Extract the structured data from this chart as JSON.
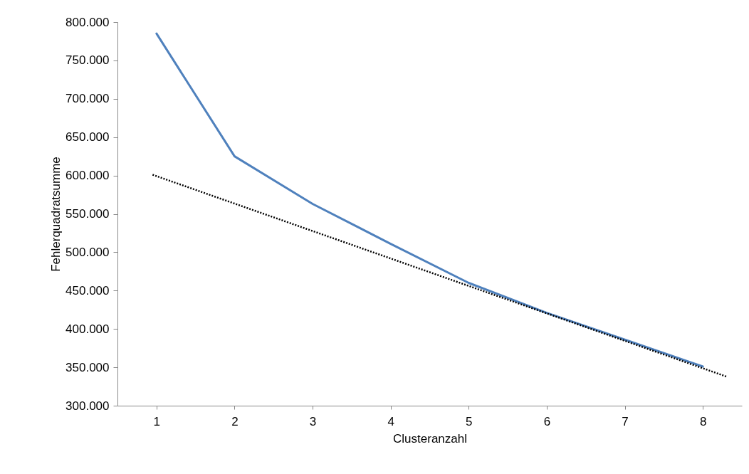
{
  "chart_data": {
    "type": "line",
    "xlabel": "Clusteranzahl",
    "ylabel": "Fehlerquadratsumme",
    "x": [
      1,
      2,
      3,
      4,
      5,
      6,
      7,
      8
    ],
    "series": [
      {
        "color": "#4f81bd",
        "values": [
          785,
          625,
          563,
          511,
          460,
          421,
          386,
          351
        ],
        "line_style": "solid"
      },
      {
        "type": "line",
        "color": "#000000",
        "x": [
          0.95,
          8.3
        ],
        "values": [
          601,
          338
        ],
        "line_style": "dotted"
      }
    ],
    "xlim": [
      0.5,
      8.5
    ],
    "xticks": [
      1,
      2,
      3,
      4,
      5,
      6,
      7,
      8
    ],
    "ylim": [
      300,
      800
    ],
    "yticks": [
      {
        "value": 300,
        "label": "300.000"
      },
      {
        "value": 350,
        "label": "350.000"
      },
      {
        "value": 400,
        "label": "400.000"
      },
      {
        "value": 450,
        "label": "450.000"
      },
      {
        "value": 500,
        "label": "500.000"
      },
      {
        "value": 550,
        "label": "550.000"
      },
      {
        "value": 600,
        "label": "600.000"
      },
      {
        "value": 650,
        "label": "650.000"
      },
      {
        "value": 700,
        "label": "700.000"
      },
      {
        "value": 750,
        "label": "750.000"
      },
      {
        "value": 800,
        "label": "800.000"
      }
    ],
    "grid": false,
    "marker": "none"
  }
}
